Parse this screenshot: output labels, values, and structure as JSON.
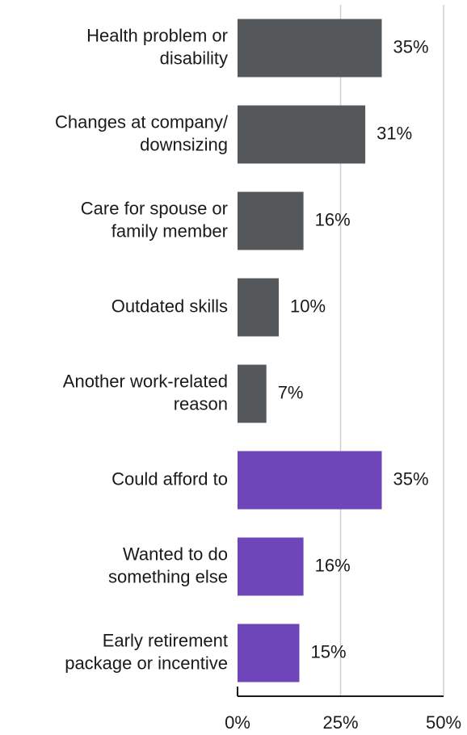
{
  "chart_data": {
    "type": "bar",
    "orientation": "horizontal",
    "categories": [
      "Health problem or\ndisability",
      "Changes at company/\ndownsizing",
      "Care for spouse or\nfamily member",
      "Outdated skills",
      "Another work-related\nreason",
      "Could afford to",
      "Wanted to do\nsomething else",
      "Early retirement\npackage or incentive"
    ],
    "values": [
      35,
      31,
      16,
      10,
      7,
      35,
      16,
      15
    ],
    "value_labels": [
      "35%",
      "31%",
      "16%",
      "10%",
      "7%",
      "35%",
      "16%",
      "15%"
    ],
    "colors": [
      "#55585b",
      "#55585b",
      "#55585b",
      "#55585b",
      "#55585b",
      "#6f46b9",
      "#6f46b9",
      "#6f46b9"
    ],
    "xlim": [
      0,
      50
    ],
    "xticks": [
      {
        "value": 0,
        "label": "0%"
      },
      {
        "value": 25,
        "label": "25%"
      },
      {
        "value": 50,
        "label": "50%"
      }
    ],
    "grid": true
  }
}
